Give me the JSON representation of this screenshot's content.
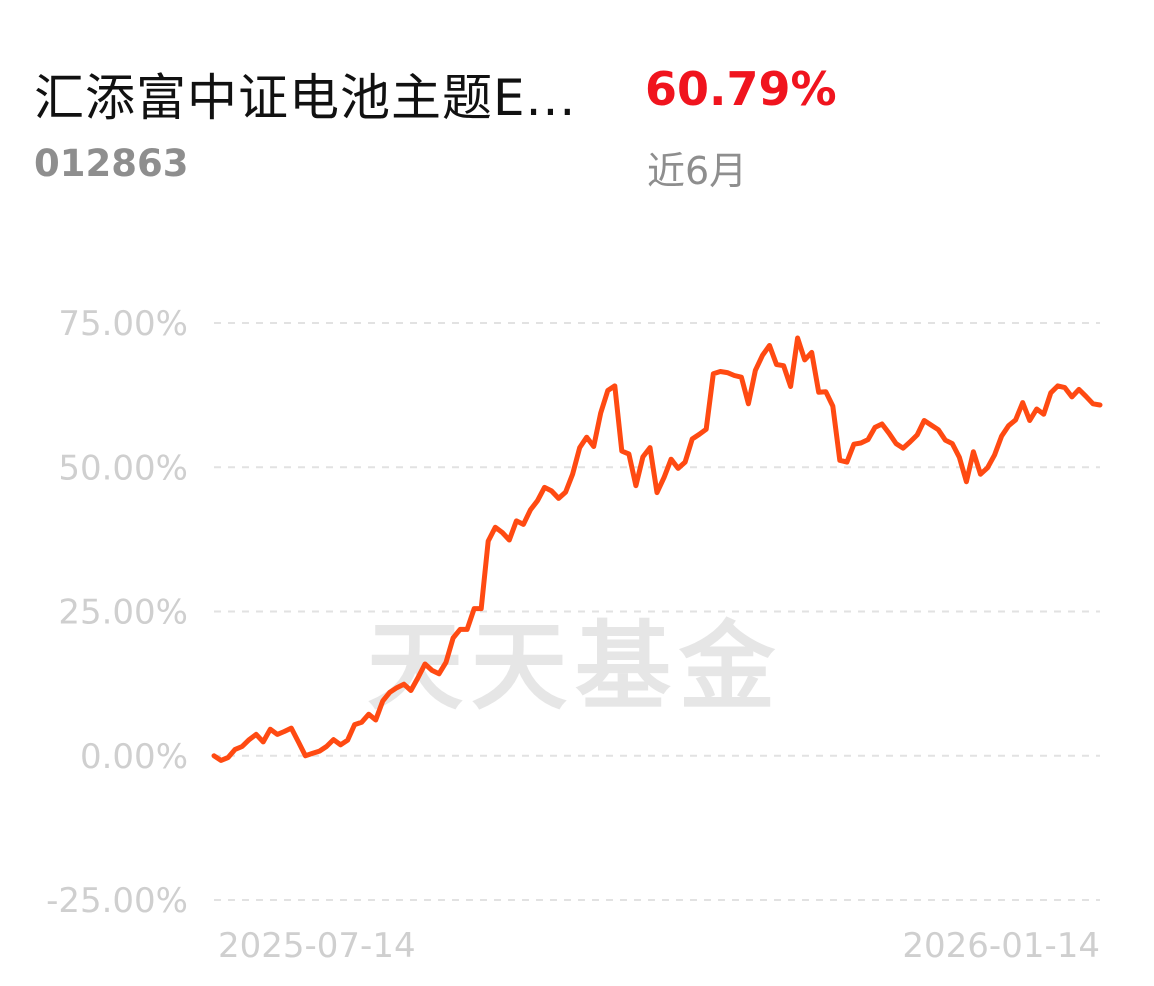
{
  "header": {
    "fund_name": "汇添富中证电池主题E...",
    "fund_code": "012863",
    "return_value": "60.79%",
    "period_label": "近6月"
  },
  "watermark": "天天基金",
  "colors": {
    "line": "#ff4a12",
    "return": "#f0141e",
    "grid": "#e2e2e2",
    "axis_text": "#cfcfcf"
  },
  "chart_data": {
    "type": "line",
    "y_ticks": [
      "75.00%",
      "50.00%",
      "25.00%",
      "0.00%",
      "-25.00%"
    ],
    "y_tick_values": [
      75,
      50,
      25,
      0,
      -25
    ],
    "ylim": [
      -25,
      75
    ],
    "x_tick_labels": [
      "2025-07-14",
      "2026-01-14"
    ],
    "grid": true,
    "series": [
      {
        "values": [
          0,
          -0.8,
          -0.3,
          1.1,
          1.6,
          2.8,
          3.7,
          2.4,
          4.6,
          3.7,
          4.2,
          4.8,
          2.4,
          0,
          0.4,
          0.8,
          1.6,
          2.8,
          1.9,
          2.7,
          5.4,
          5.8,
          7.2,
          6.2,
          9.5,
          11,
          11.8,
          12.4,
          11.3,
          13.5,
          15.9,
          14.8,
          14.2,
          16.2,
          20.4,
          21.9,
          21.9,
          25.5,
          25.5,
          37.2,
          39.6,
          38.7,
          37.4,
          40.7,
          40.1,
          42.6,
          44.2,
          46.5,
          45.9,
          44.6,
          45.7,
          48.8,
          53.4,
          55.2,
          53.6,
          59.4,
          63.3,
          64.1,
          52.8,
          52.3,
          46.8,
          51.8,
          53.4,
          45.6,
          48.2,
          51.4,
          49.8,
          50.9,
          54.9,
          55.7,
          56.6,
          66.2,
          66.6,
          66.4,
          65.9,
          65.6,
          61,
          66.8,
          69.4,
          71.1,
          67.8,
          67.6,
          64,
          72.4,
          68.6,
          69.9,
          63,
          63.1,
          60.6,
          51.2,
          50.9,
          54,
          54.2,
          54.8,
          56.9,
          57.5,
          55.9,
          54.1,
          53.3,
          54.4,
          55.6,
          58.1,
          57.3,
          56.5,
          54.7,
          54.1,
          51.7,
          47.5,
          52.7,
          48.8,
          49.9,
          52.1,
          55.4,
          57.2,
          58.2,
          61.2,
          58.1,
          60.1,
          59.2,
          62.9,
          64.1,
          63.8,
          62.2,
          63.5,
          62.3,
          61,
          60.79
        ]
      }
    ]
  }
}
